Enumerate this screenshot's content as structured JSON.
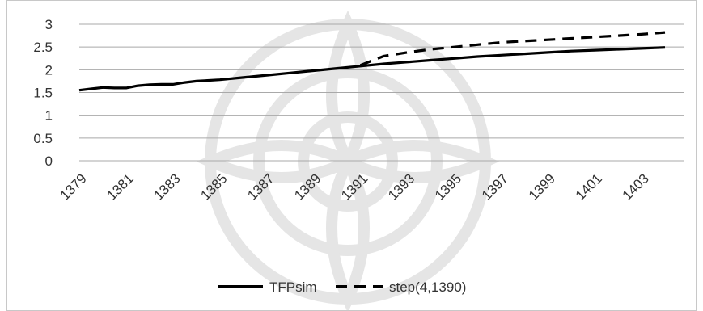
{
  "chart_data": {
    "type": "line",
    "title": "",
    "xlabel": "",
    "ylabel": "",
    "x_tick_labels": [
      "1379",
      "1381",
      "1383",
      "1385",
      "1387",
      "1389",
      "1391",
      "1393",
      "1395",
      "1397",
      "1399",
      "1401",
      "1403"
    ],
    "y_tick_labels": [
      "0",
      "0.5",
      "1",
      "1.5",
      "2",
      "2.5",
      "3"
    ],
    "ylim": [
      0,
      3
    ],
    "xlim": [
      1379,
      1404
    ],
    "grid": "horizontal",
    "legend_position": "bottom",
    "series": [
      {
        "name": "TFPsim",
        "style": "solid",
        "color": "#000000",
        "x": [
          1379,
          1379.5,
          1380,
          1380.5,
          1381,
          1381.5,
          1382,
          1382.5,
          1383,
          1383.5,
          1384,
          1385,
          1386,
          1387,
          1388,
          1389,
          1390,
          1391,
          1392,
          1393,
          1394,
          1395,
          1396,
          1397,
          1398,
          1399,
          1400,
          1401,
          1402,
          1403,
          1404
        ],
        "values": [
          1.55,
          1.58,
          1.61,
          1.6,
          1.6,
          1.65,
          1.67,
          1.68,
          1.68,
          1.72,
          1.75,
          1.78,
          1.83,
          1.88,
          1.93,
          1.98,
          2.03,
          2.08,
          2.13,
          2.17,
          2.21,
          2.25,
          2.29,
          2.32,
          2.35,
          2.38,
          2.41,
          2.43,
          2.45,
          2.47,
          2.49
        ]
      },
      {
        "name": "step(4,1390)",
        "style": "dashed",
        "color": "#000000",
        "x": [
          1391,
          1391.5,
          1392,
          1393,
          1394,
          1395,
          1396,
          1397,
          1398,
          1399,
          1400,
          1401,
          1402,
          1403,
          1404
        ],
        "values": [
          2.1,
          2.2,
          2.3,
          2.38,
          2.45,
          2.5,
          2.55,
          2.6,
          2.63,
          2.66,
          2.69,
          2.72,
          2.75,
          2.78,
          2.82
        ]
      }
    ]
  }
}
